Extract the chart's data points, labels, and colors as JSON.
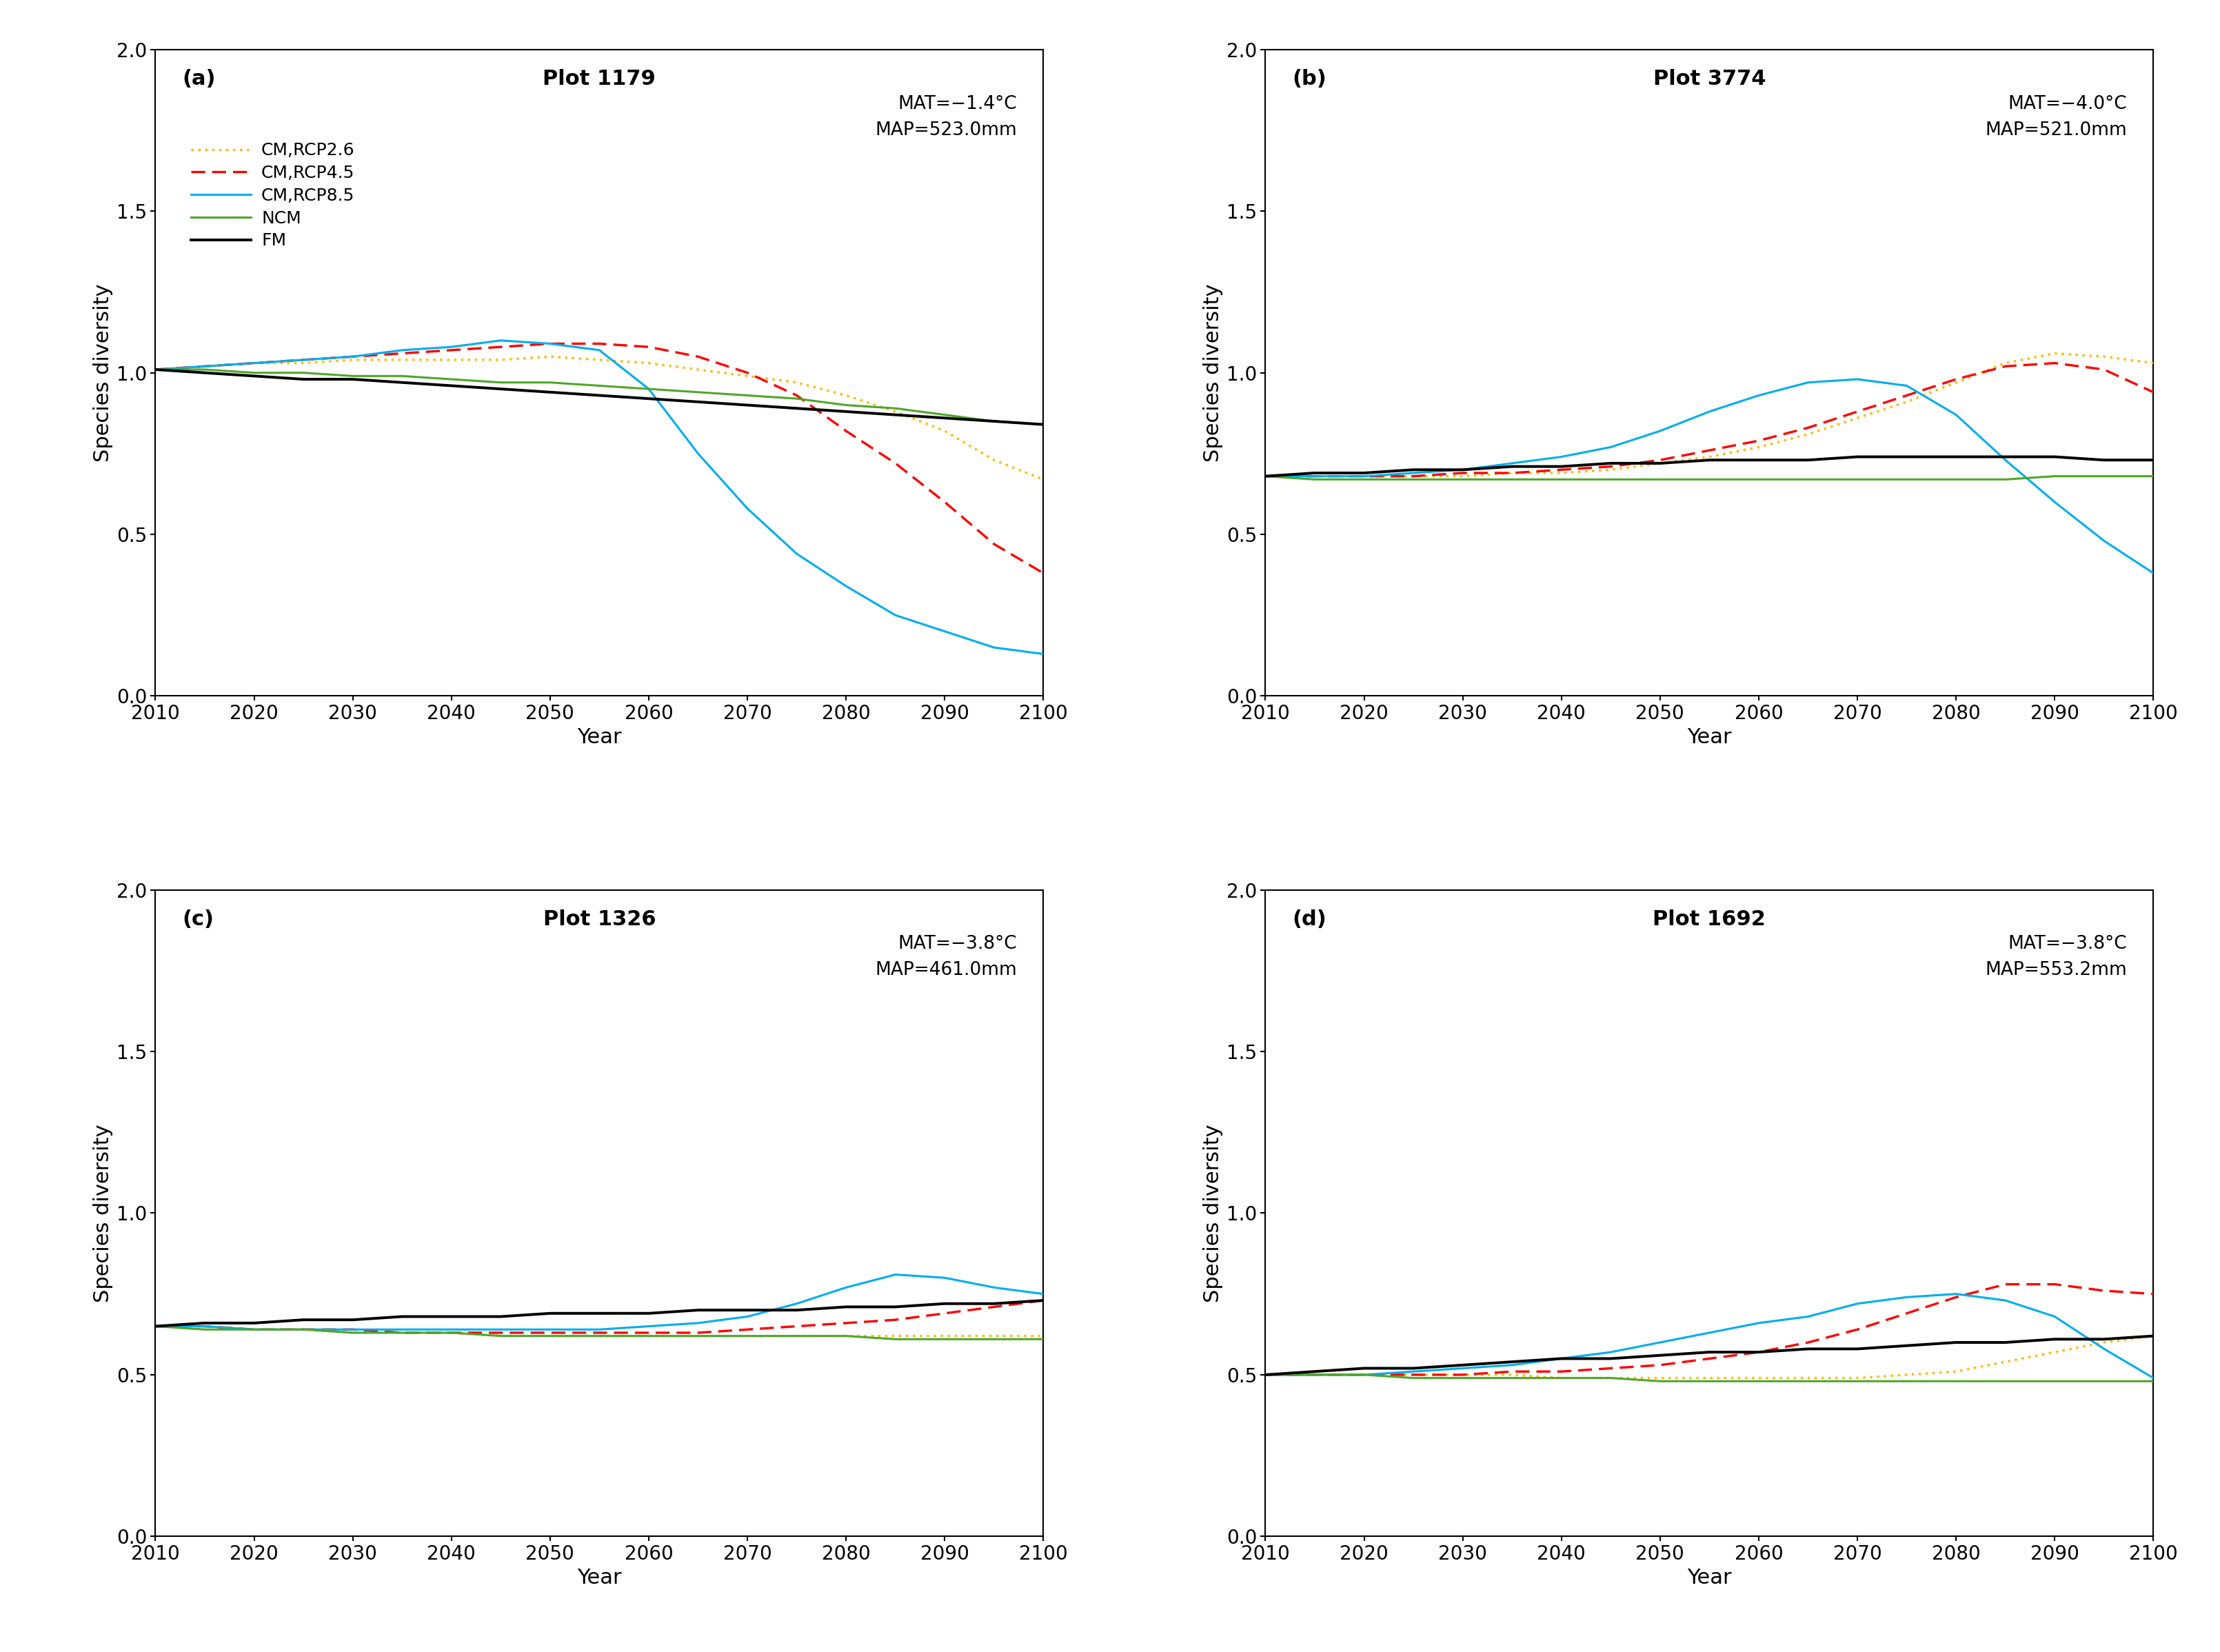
{
  "panels": [
    {
      "label": "a",
      "title": "Plot 1179",
      "mat": "MAT=−1.4°C",
      "map": "MAP=523.0mm",
      "years": [
        2010,
        2015,
        2020,
        2025,
        2030,
        2035,
        2040,
        2045,
        2050,
        2055,
        2060,
        2065,
        2070,
        2075,
        2080,
        2085,
        2090,
        2095,
        2100
      ],
      "rcp26": [
        1.01,
        1.02,
        1.03,
        1.03,
        1.04,
        1.04,
        1.04,
        1.04,
        1.05,
        1.04,
        1.03,
        1.01,
        0.99,
        0.97,
        0.93,
        0.88,
        0.82,
        0.73,
        0.67
      ],
      "rcp45": [
        1.01,
        1.02,
        1.03,
        1.04,
        1.05,
        1.06,
        1.07,
        1.08,
        1.09,
        1.09,
        1.08,
        1.05,
        1.0,
        0.93,
        0.82,
        0.72,
        0.6,
        0.47,
        0.38
      ],
      "rcp85": [
        1.01,
        1.02,
        1.03,
        1.04,
        1.05,
        1.07,
        1.08,
        1.1,
        1.09,
        1.07,
        0.95,
        0.75,
        0.58,
        0.44,
        0.34,
        0.25,
        0.2,
        0.15,
        0.13
      ],
      "ncm": [
        1.01,
        1.01,
        1.0,
        1.0,
        0.99,
        0.99,
        0.98,
        0.97,
        0.97,
        0.96,
        0.95,
        0.94,
        0.93,
        0.92,
        0.9,
        0.89,
        0.87,
        0.85,
        0.84
      ],
      "fm": [
        1.01,
        1.0,
        0.99,
        0.98,
        0.98,
        0.97,
        0.96,
        0.95,
        0.94,
        0.93,
        0.92,
        0.91,
        0.9,
        0.89,
        0.88,
        0.87,
        0.86,
        0.85,
        0.84
      ]
    },
    {
      "label": "b",
      "title": "Plot 3774",
      "mat": "MAT=−4.0°C",
      "map": "MAP=521.0mm",
      "years": [
        2010,
        2015,
        2020,
        2025,
        2030,
        2035,
        2040,
        2045,
        2050,
        2055,
        2060,
        2065,
        2070,
        2075,
        2080,
        2085,
        2090,
        2095,
        2100
      ],
      "rcp26": [
        0.68,
        0.68,
        0.68,
        0.68,
        0.68,
        0.69,
        0.69,
        0.7,
        0.72,
        0.74,
        0.77,
        0.81,
        0.86,
        0.91,
        0.97,
        1.03,
        1.06,
        1.05,
        1.03
      ],
      "rcp45": [
        0.68,
        0.68,
        0.68,
        0.68,
        0.69,
        0.69,
        0.7,
        0.71,
        0.73,
        0.76,
        0.79,
        0.83,
        0.88,
        0.93,
        0.98,
        1.02,
        1.03,
        1.01,
        0.94
      ],
      "rcp85": [
        0.68,
        0.68,
        0.68,
        0.69,
        0.7,
        0.72,
        0.74,
        0.77,
        0.82,
        0.88,
        0.93,
        0.97,
        0.98,
        0.96,
        0.87,
        0.73,
        0.6,
        0.48,
        0.38
      ],
      "ncm": [
        0.68,
        0.67,
        0.67,
        0.67,
        0.67,
        0.67,
        0.67,
        0.67,
        0.67,
        0.67,
        0.67,
        0.67,
        0.67,
        0.67,
        0.67,
        0.67,
        0.68,
        0.68,
        0.68
      ],
      "fm": [
        0.68,
        0.69,
        0.69,
        0.7,
        0.7,
        0.71,
        0.71,
        0.72,
        0.72,
        0.73,
        0.73,
        0.73,
        0.74,
        0.74,
        0.74,
        0.74,
        0.74,
        0.73,
        0.73
      ]
    },
    {
      "label": "c",
      "title": "Plot 1326",
      "mat": "MAT=−3.8°C",
      "map": "MAP=461.0mm",
      "years": [
        2010,
        2015,
        2020,
        2025,
        2030,
        2035,
        2040,
        2045,
        2050,
        2055,
        2060,
        2065,
        2070,
        2075,
        2080,
        2085,
        2090,
        2095,
        2100
      ],
      "rcp26": [
        0.65,
        0.65,
        0.64,
        0.64,
        0.63,
        0.63,
        0.63,
        0.62,
        0.62,
        0.62,
        0.62,
        0.62,
        0.62,
        0.62,
        0.62,
        0.62,
        0.62,
        0.62,
        0.62
      ],
      "rcp45": [
        0.65,
        0.65,
        0.64,
        0.64,
        0.64,
        0.63,
        0.63,
        0.63,
        0.63,
        0.63,
        0.63,
        0.63,
        0.64,
        0.65,
        0.66,
        0.67,
        0.69,
        0.71,
        0.73
      ],
      "rcp85": [
        0.65,
        0.65,
        0.64,
        0.64,
        0.64,
        0.64,
        0.64,
        0.64,
        0.64,
        0.64,
        0.65,
        0.66,
        0.68,
        0.72,
        0.77,
        0.81,
        0.8,
        0.77,
        0.75
      ],
      "ncm": [
        0.65,
        0.64,
        0.64,
        0.64,
        0.63,
        0.63,
        0.63,
        0.62,
        0.62,
        0.62,
        0.62,
        0.62,
        0.62,
        0.62,
        0.62,
        0.61,
        0.61,
        0.61,
        0.61
      ],
      "fm": [
        0.65,
        0.66,
        0.66,
        0.67,
        0.67,
        0.68,
        0.68,
        0.68,
        0.69,
        0.69,
        0.69,
        0.7,
        0.7,
        0.7,
        0.71,
        0.71,
        0.72,
        0.72,
        0.73
      ]
    },
    {
      "label": "d",
      "title": "Plot 1692",
      "mat": "MAT=−3.8°C",
      "map": "MAP=553.2mm",
      "years": [
        2010,
        2015,
        2020,
        2025,
        2030,
        2035,
        2040,
        2045,
        2050,
        2055,
        2060,
        2065,
        2070,
        2075,
        2080,
        2085,
        2090,
        2095,
        2100
      ],
      "rcp26": [
        0.5,
        0.5,
        0.5,
        0.5,
        0.5,
        0.5,
        0.49,
        0.49,
        0.49,
        0.49,
        0.49,
        0.49,
        0.49,
        0.5,
        0.51,
        0.54,
        0.57,
        0.6,
        0.62
      ],
      "rcp45": [
        0.5,
        0.5,
        0.5,
        0.5,
        0.5,
        0.51,
        0.51,
        0.52,
        0.53,
        0.55,
        0.57,
        0.6,
        0.64,
        0.69,
        0.74,
        0.78,
        0.78,
        0.76,
        0.75
      ],
      "rcp85": [
        0.5,
        0.5,
        0.5,
        0.51,
        0.52,
        0.53,
        0.55,
        0.57,
        0.6,
        0.63,
        0.66,
        0.68,
        0.72,
        0.74,
        0.75,
        0.73,
        0.68,
        0.58,
        0.49
      ],
      "ncm": [
        0.5,
        0.5,
        0.5,
        0.49,
        0.49,
        0.49,
        0.49,
        0.49,
        0.48,
        0.48,
        0.48,
        0.48,
        0.48,
        0.48,
        0.48,
        0.48,
        0.48,
        0.48,
        0.48
      ],
      "fm": [
        0.5,
        0.51,
        0.52,
        0.52,
        0.53,
        0.54,
        0.55,
        0.55,
        0.56,
        0.57,
        0.57,
        0.58,
        0.58,
        0.59,
        0.6,
        0.6,
        0.61,
        0.61,
        0.62
      ]
    }
  ],
  "colors": {
    "rcp26": "#FFB900",
    "rcp45": "#FF0000",
    "rcp85": "#00ADEF",
    "ncm": "#4EA72A",
    "fm": "#000000"
  },
  "linestyles": {
    "rcp26": "dotted",
    "rcp45": "dashed",
    "rcp85": "solid",
    "ncm": "solid",
    "fm": "solid"
  },
  "legend_labels": {
    "rcp26": "CM,RCP2.6",
    "rcp45": "CM,RCP4.5",
    "rcp85": "CM,RCP8.5",
    "ncm": "NCM",
    "fm": "FM"
  },
  "ylim": [
    0.0,
    2.0
  ],
  "yticks": [
    0.0,
    0.5,
    1.0,
    1.5,
    2.0
  ],
  "xticks": [
    2010,
    2020,
    2030,
    2040,
    2050,
    2060,
    2070,
    2080,
    2090,
    2100
  ],
  "xticklabels": [
    "2010",
    "2020",
    "2030",
    "2040",
    "2050",
    "2060",
    "2070",
    "2080",
    "2090",
    "2100"
  ],
  "xlabel": "Year",
  "ylabel": "Species diversity",
  "linewidth": 2.2
}
